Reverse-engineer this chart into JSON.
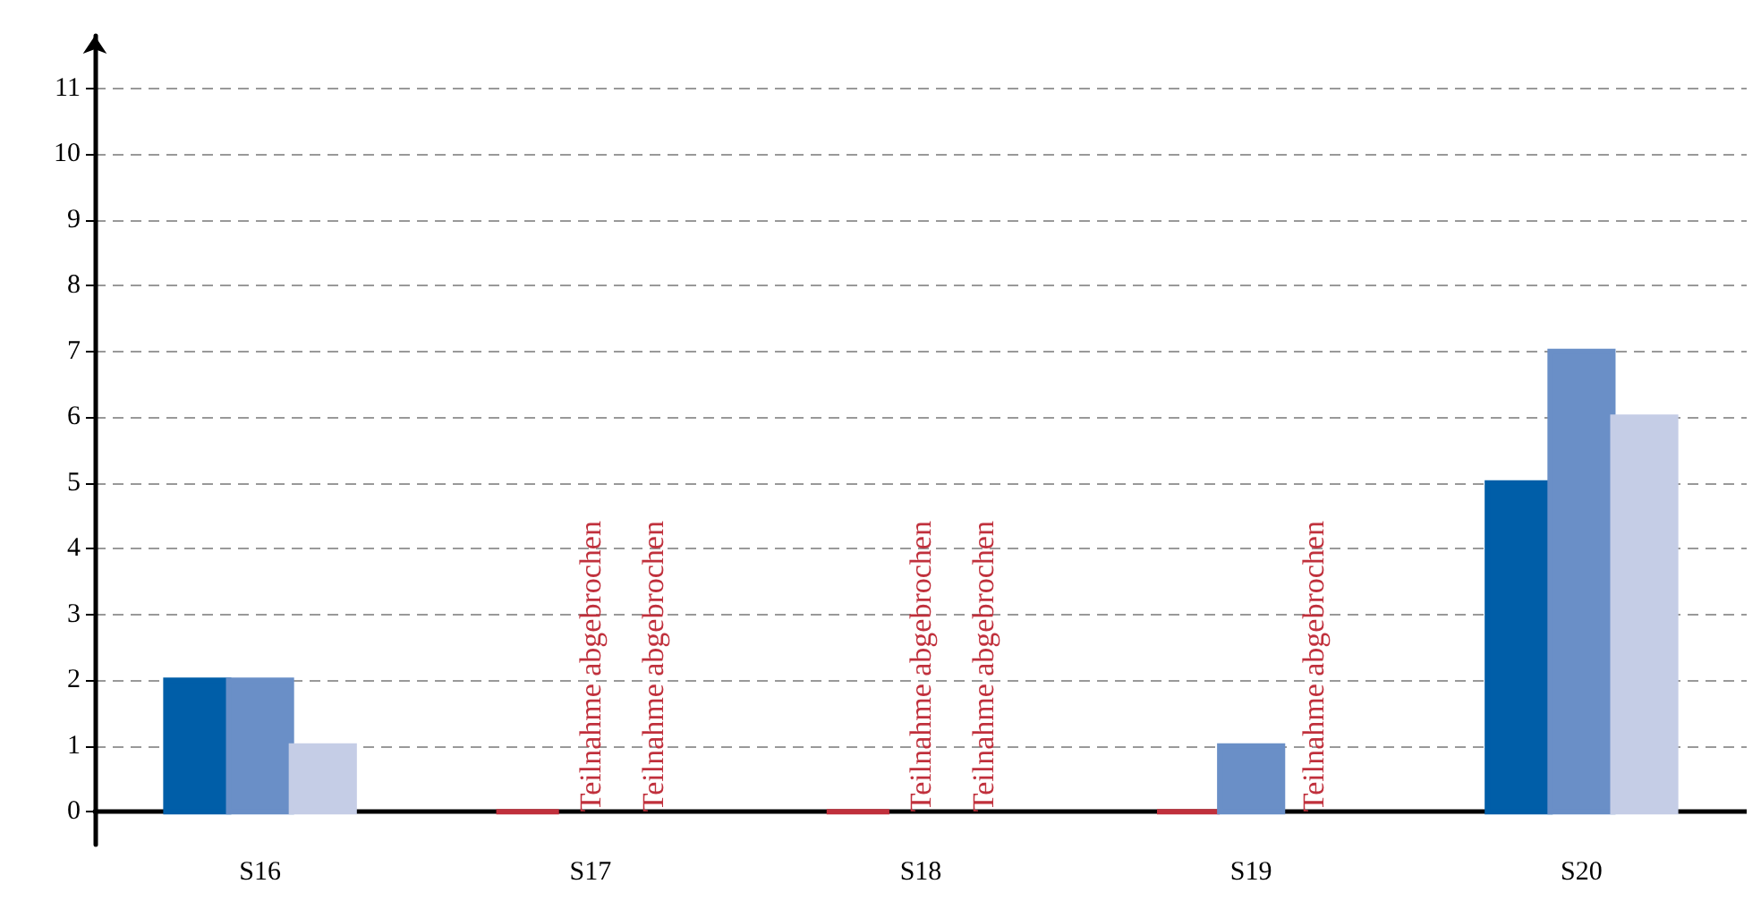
{
  "chart_data": {
    "type": "bar",
    "categories": [
      "S16",
      "S17",
      "S18",
      "S19",
      "S20"
    ],
    "series": [
      {
        "colors": [
          "#005ea8",
          "#c0303c",
          "#c0303c",
          "#c0303c",
          "#005ea8"
        ],
        "values": [
          2,
          0,
          0,
          0,
          5
        ],
        "value_labels": [
          null,
          null,
          null,
          null,
          null
        ]
      },
      {
        "color": "#6a8fc7",
        "values": [
          2,
          null,
          null,
          1,
          7
        ],
        "value_labels": [
          null,
          "Teilnahme abgebrochen",
          "Teilnahme abgebrochen",
          null,
          null
        ]
      },
      {
        "color": "#c5cde6",
        "values": [
          1,
          null,
          null,
          null,
          6
        ],
        "value_labels": [
          null,
          "Teilnahme abgebrochen",
          "Teilnahme abgebrochen",
          "Teilnahme abgebrochen",
          null
        ]
      }
    ],
    "ylim": [
      -0.5,
      11.8
    ],
    "yticks": [
      0,
      1,
      2,
      3,
      4,
      5,
      6,
      7,
      8,
      9,
      10,
      11
    ],
    "grid": "y"
  }
}
